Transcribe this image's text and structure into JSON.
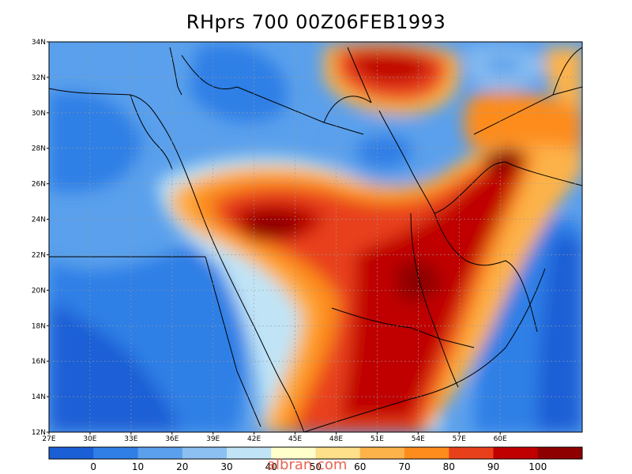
{
  "title": "RHprs 700 00Z06FEB1993",
  "watermark": "albran.com",
  "lat_ticks": [
    "34N",
    "32N",
    "30N",
    "28N",
    "26N",
    "24N",
    "22N",
    "20N",
    "18N",
    "16N",
    "14N",
    "12N"
  ],
  "lon_ticks": [
    "27E",
    "30E",
    "33E",
    "36E",
    "39E",
    "42E",
    "45E",
    "48E",
    "51E",
    "54E",
    "57E",
    "60E"
  ],
  "colorbar": {
    "colors": [
      "#1a5fd6",
      "#2f7fe6",
      "#5aa0ec",
      "#8cc0f2",
      "#c0e4f6",
      "#ffffcc",
      "#ffe08a",
      "#fdb24a",
      "#fd8c1c",
      "#e8401a",
      "#c00000",
      "#8e0000"
    ],
    "labels": [
      "0",
      "10",
      "20",
      "30",
      "40",
      "50",
      "60",
      "70",
      "80",
      "90",
      "100"
    ]
  }
}
